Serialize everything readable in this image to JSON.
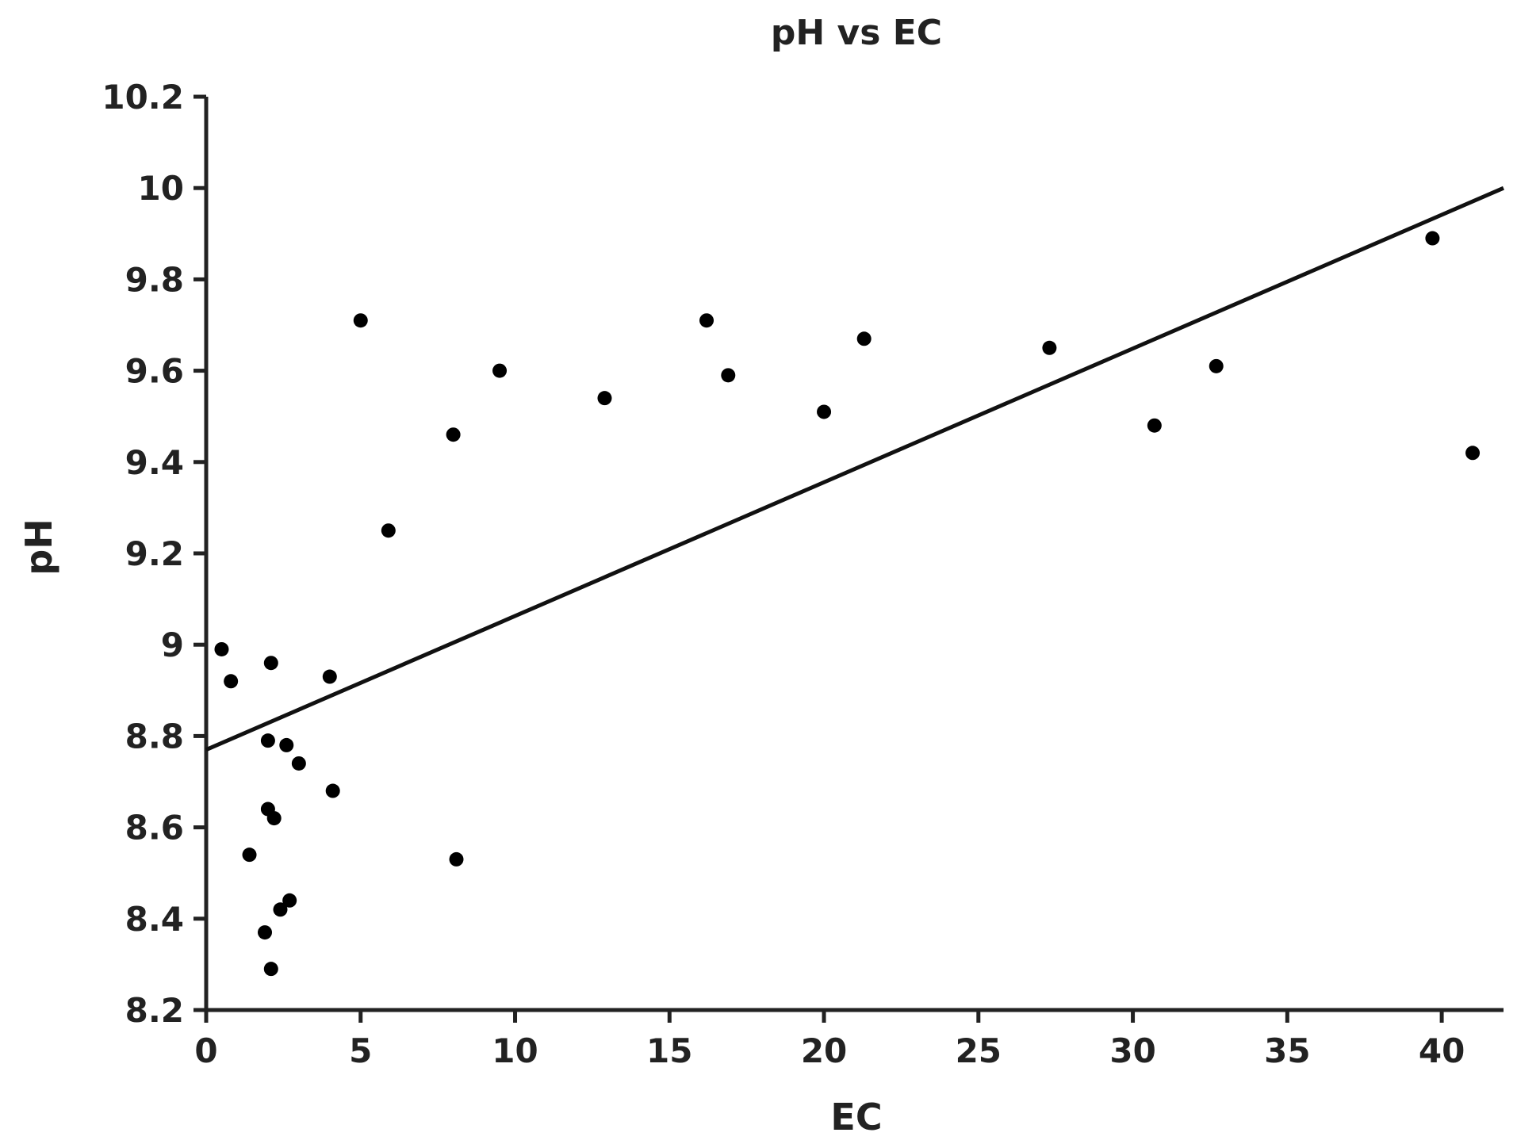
{
  "chart_data": {
    "type": "scatter",
    "title": "pH vs EC",
    "xlabel": "EC",
    "ylabel": "pH",
    "xlim": [
      0,
      42
    ],
    "ylim": [
      8.2,
      10.2
    ],
    "x_ticks": [
      0,
      5,
      10,
      15,
      20,
      25,
      30,
      35,
      40
    ],
    "x_tick_labels": [
      "0",
      "5",
      "10",
      "15",
      "20",
      "25",
      "30",
      "35",
      "40"
    ],
    "y_ticks": [
      8.2,
      8.4,
      8.6,
      8.8,
      9.0,
      9.2,
      9.4,
      9.6,
      9.8,
      10.0,
      10.2
    ],
    "y_tick_labels": [
      "8.2",
      "8.4",
      "8.6",
      "8.8",
      "9",
      "9.2",
      "9.4",
      "9.6",
      "9.8",
      "10",
      "10.2"
    ],
    "grid": false,
    "legend": "none",
    "marker_color": "#000000",
    "line_color": "#111111",
    "points": [
      {
        "x": 0.5,
        "y": 8.99
      },
      {
        "x": 0.8,
        "y": 8.92
      },
      {
        "x": 2.1,
        "y": 8.96
      },
      {
        "x": 4.0,
        "y": 8.93
      },
      {
        "x": 2.0,
        "y": 8.79
      },
      {
        "x": 2.6,
        "y": 8.78
      },
      {
        "x": 3.0,
        "y": 8.74
      },
      {
        "x": 4.1,
        "y": 8.68
      },
      {
        "x": 2.0,
        "y": 8.64
      },
      {
        "x": 2.2,
        "y": 8.62
      },
      {
        "x": 1.4,
        "y": 8.54
      },
      {
        "x": 8.1,
        "y": 8.53
      },
      {
        "x": 2.7,
        "y": 8.44
      },
      {
        "x": 2.4,
        "y": 8.42
      },
      {
        "x": 1.9,
        "y": 8.37
      },
      {
        "x": 2.1,
        "y": 8.29
      },
      {
        "x": 5.0,
        "y": 9.71
      },
      {
        "x": 5.9,
        "y": 9.25
      },
      {
        "x": 8.0,
        "y": 9.46
      },
      {
        "x": 9.5,
        "y": 9.6
      },
      {
        "x": 12.9,
        "y": 9.54
      },
      {
        "x": 16.2,
        "y": 9.71
      },
      {
        "x": 16.9,
        "y": 9.59
      },
      {
        "x": 20.0,
        "y": 9.51
      },
      {
        "x": 21.3,
        "y": 9.67
      },
      {
        "x": 27.3,
        "y": 9.65
      },
      {
        "x": 30.7,
        "y": 9.48
      },
      {
        "x": 32.7,
        "y": 9.61
      },
      {
        "x": 39.7,
        "y": 9.89
      },
      {
        "x": 41.0,
        "y": 9.42
      }
    ],
    "trendline": {
      "x": [
        0,
        42
      ],
      "y": [
        8.77,
        10.0
      ]
    }
  }
}
